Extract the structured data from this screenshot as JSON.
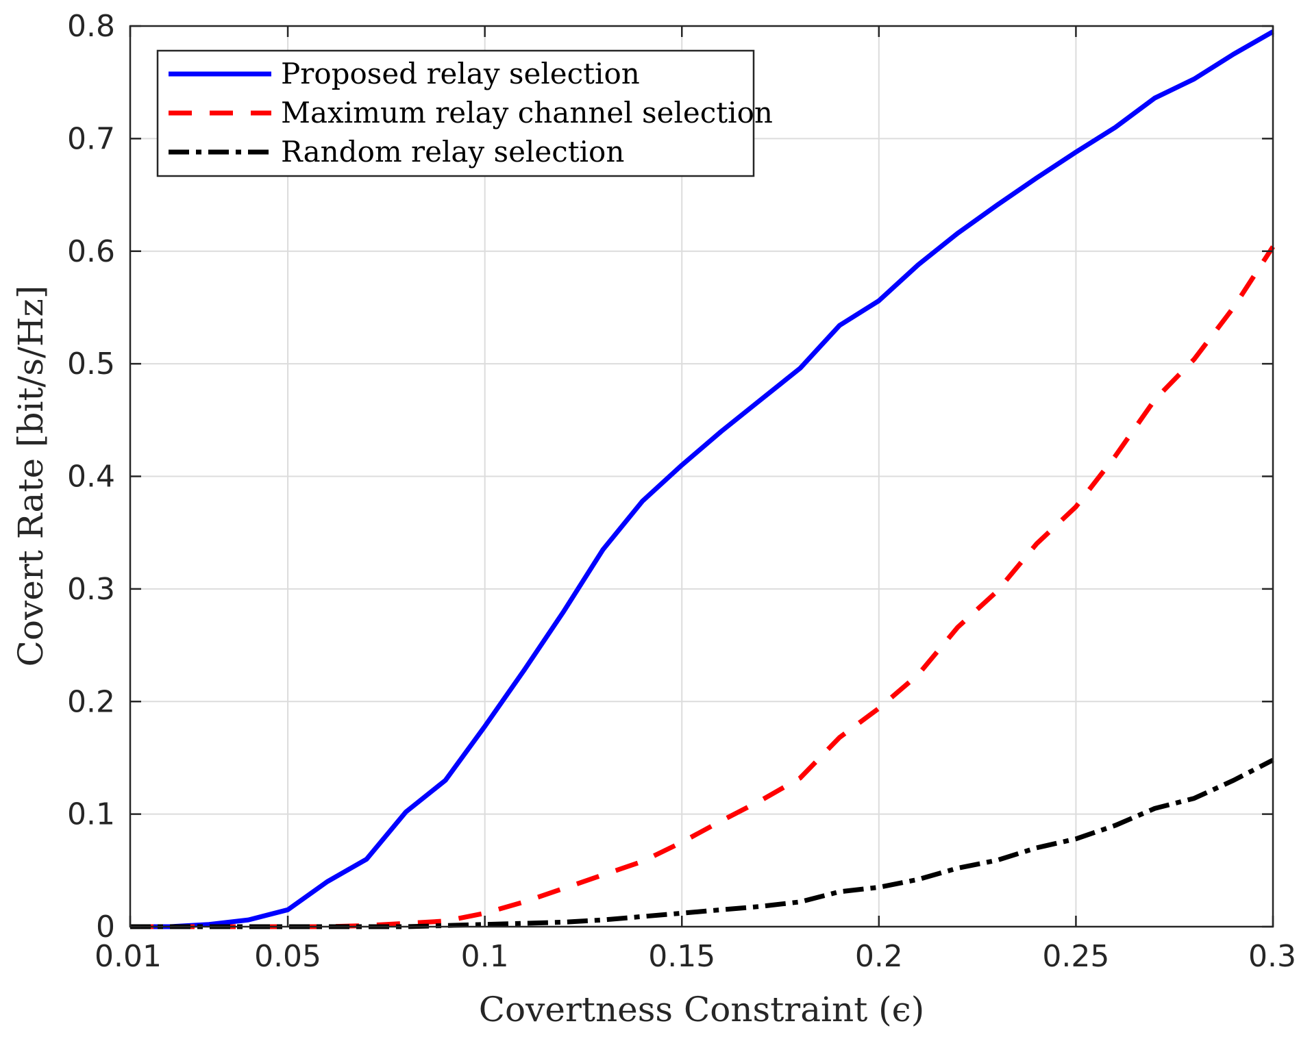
{
  "chart_data": {
    "type": "line",
    "xlabel": "Covertness Constraint (ϵ)",
    "ylabel": "Covert Rate [bit/s/Hz]",
    "xlim": [
      0.01,
      0.3
    ],
    "ylim": [
      0,
      0.8
    ],
    "xticks": [
      0.01,
      0.05,
      0.1,
      0.15,
      0.2,
      0.25,
      0.3
    ],
    "xtick_labels": [
      "0.01",
      "0.05",
      "0.1",
      "0.15",
      "0.2",
      "0.25",
      "0.3"
    ],
    "yticks": [
      0,
      0.1,
      0.2,
      0.3,
      0.4,
      0.5,
      0.6,
      0.7,
      0.8
    ],
    "ytick_labels": [
      "0",
      "0.1",
      "0.2",
      "0.3",
      "0.4",
      "0.5",
      "0.6",
      "0.7",
      "0.8"
    ],
    "grid": true,
    "legend_position": "top-left",
    "x": [
      0.01,
      0.02,
      0.03,
      0.04,
      0.05,
      0.06,
      0.07,
      0.08,
      0.09,
      0.1,
      0.11,
      0.12,
      0.13,
      0.14,
      0.15,
      0.16,
      0.17,
      0.18,
      0.19,
      0.2,
      0.21,
      0.22,
      0.23,
      0.24,
      0.25,
      0.26,
      0.27,
      0.28,
      0.29,
      0.3
    ],
    "series": [
      {
        "name": "Proposed relay selection",
        "color": "#0000ff",
        "style": "solid",
        "values": [
          0,
          0,
          0.002,
          0.006,
          0.015,
          0.04,
          0.06,
          0.102,
          0.13,
          0.178,
          0.228,
          0.28,
          0.335,
          0.378,
          0.41,
          0.44,
          0.468,
          0.496,
          0.534,
          0.556,
          0.588,
          0.616,
          0.641,
          0.665,
          0.688,
          0.71,
          0.736,
          0.753,
          0.775,
          0.795
        ]
      },
      {
        "name": "Maximum relay channel selection",
        "color": "#ff0000",
        "style": "dashed",
        "values": [
          0,
          0,
          0,
          0,
          0,
          0,
          0.001,
          0.003,
          0.005,
          0.012,
          0.022,
          0.034,
          0.046,
          0.058,
          0.075,
          0.094,
          0.112,
          0.132,
          0.168,
          0.194,
          0.224,
          0.266,
          0.298,
          0.34,
          0.373,
          0.418,
          0.468,
          0.504,
          0.55,
          0.604
        ]
      },
      {
        "name": "Random relay selection",
        "color": "#000000",
        "style": "dashdot",
        "values": [
          0,
          0,
          0,
          0,
          0,
          0,
          0,
          0,
          0.001,
          0.002,
          0.003,
          0.004,
          0.006,
          0.009,
          0.012,
          0.015,
          0.018,
          0.022,
          0.031,
          0.035,
          0.042,
          0.052,
          0.059,
          0.07,
          0.078,
          0.09,
          0.105,
          0.114,
          0.13,
          0.148
        ]
      }
    ]
  }
}
